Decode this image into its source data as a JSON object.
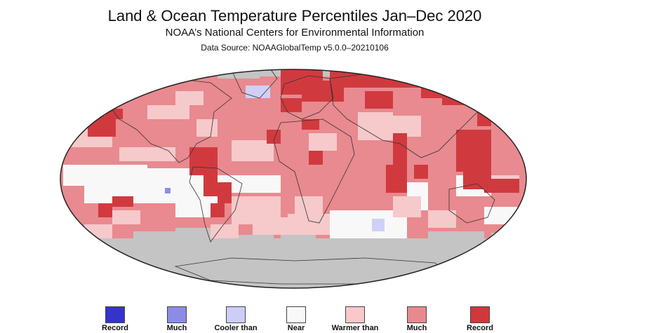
{
  "header": {
    "title": "Land & Ocean Temperature Percentiles Jan–Dec 2020",
    "subtitle": "NOAA’s National Centers for Environmental Information",
    "source": "Data Source: NOAAGlobalTemp v5.0.0–20210106"
  },
  "map": {
    "projection": "robinson",
    "categories": {
      "gray": "#c4c4c4",
      "near": "#f8f8f8",
      "warmer": "#f6c9cb",
      "much_warmer": "#e88a8f",
      "record_warmest": "#d03a3f",
      "cooler": "#d0d0f6",
      "much_cooler": "#8e8ee8",
      "record_coldest": "#3838d0"
    },
    "coastline_color": "#333333"
  },
  "legend": {
    "items": [
      {
        "label": "Record",
        "color": "#3434cc",
        "icon": "swatch"
      },
      {
        "label": "Much",
        "color": "#8c8ce6",
        "icon": "swatch"
      },
      {
        "label": "Cooler than",
        "color": "#cdcdf7",
        "icon": "swatch"
      },
      {
        "label": "Near",
        "color": "#f8f8f8",
        "icon": "swatch"
      },
      {
        "label": "Warmer than",
        "color": "#f8c8cb",
        "icon": "swatch"
      },
      {
        "label": "Much",
        "color": "#e68a8f",
        "icon": "swatch"
      },
      {
        "label": "Record",
        "color": "#d2373c",
        "icon": "swatch"
      }
    ]
  }
}
